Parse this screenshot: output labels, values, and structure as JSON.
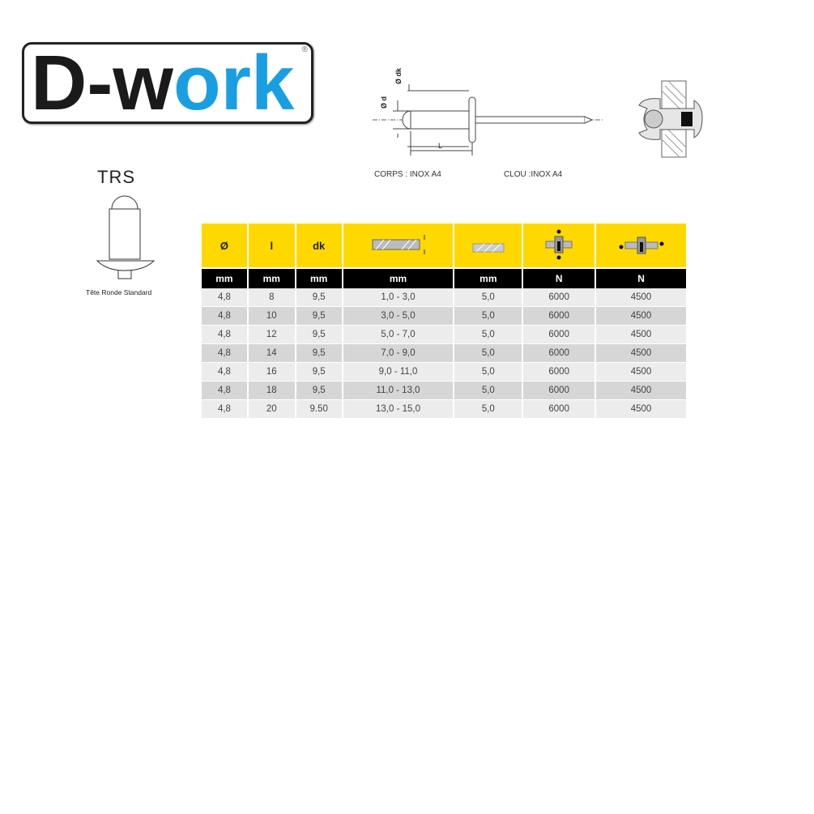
{
  "logo": {
    "text_dark": "D-w",
    "text_blue": "ork",
    "registered": "®",
    "brand_blue": "#1a9ee2"
  },
  "diagram": {
    "label_d": "Ø d",
    "label_dk": "Ø dk",
    "label_L": "L",
    "corps": "CORPS : INOX A4",
    "clou": "CLOU :INOX A4"
  },
  "product": {
    "code": "TRS",
    "head_type": "Tête Ronde Standard"
  },
  "table": {
    "header_color": "#ffd800",
    "headers": [
      "Ø",
      "l",
      "dk",
      "grip-range-icon",
      "drill-hole-icon",
      "shear-strength-icon",
      "tensile-strength-icon"
    ],
    "header_text": [
      "Ø",
      "l",
      "dk"
    ],
    "units": [
      "mm",
      "mm",
      "mm",
      "mm",
      "mm",
      "N",
      "N"
    ],
    "rows": [
      [
        "4,8",
        "8",
        "9,5",
        "1,0 - 3,0",
        "5,0",
        "6000",
        "4500"
      ],
      [
        "4,8",
        "10",
        "9,5",
        "3,0 - 5,0",
        "5,0",
        "6000",
        "4500"
      ],
      [
        "4,8",
        "12",
        "9,5",
        "5,0 - 7,0",
        "5,0",
        "6000",
        "4500"
      ],
      [
        "4,8",
        "14",
        "9,5",
        "7,0 - 9,0",
        "5,0",
        "6000",
        "4500"
      ],
      [
        "4,8",
        "16",
        "9,5",
        "9,0 - 11,0",
        "5,0",
        "6000",
        "4500"
      ],
      [
        "4,8",
        "18",
        "9,5",
        "11,0 - 13,0",
        "5,0",
        "6000",
        "4500"
      ],
      [
        "4,8",
        "20",
        "9.50",
        "13,0 - 15,0",
        "5,0",
        "6000",
        "4500"
      ]
    ]
  }
}
